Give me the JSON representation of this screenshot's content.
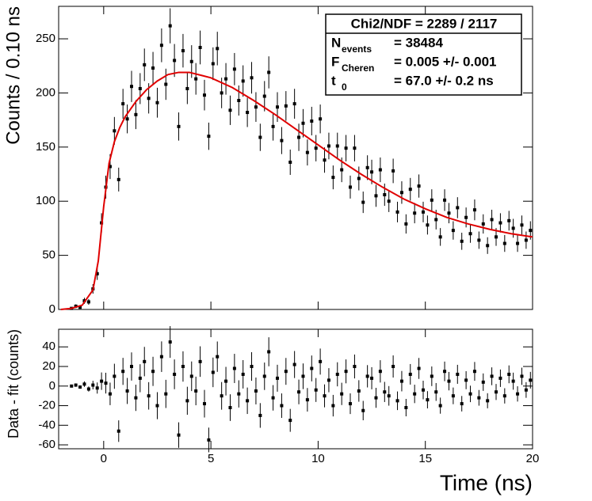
{
  "chart_data": [
    {
      "type": "scatter",
      "ylabel": "Counts / 0.10 ns",
      "xlim": [
        -2.1,
        20
      ],
      "xticks": [
        0,
        5,
        10,
        15,
        20
      ],
      "ylim": [
        0,
        280
      ],
      "yticks": [
        0,
        50,
        100,
        150,
        200,
        250
      ],
      "series": [
        {
          "color": "#000000",
          "line": false,
          "x": [
            -1.5,
            -1.3,
            -1.1,
            -0.9,
            -0.7,
            -0.5,
            -0.3,
            -0.1,
            0.1,
            0.3,
            0.5,
            0.7,
            0.9,
            1.1,
            1.3,
            1.5,
            1.7,
            1.9,
            2.1,
            2.3,
            2.5,
            2.7,
            2.9,
            3.1,
            3.3,
            3.5,
            3.7,
            3.9,
            4.1,
            4.3,
            4.5,
            4.7,
            4.9,
            5.1,
            5.3,
            5.5,
            5.7,
            5.9,
            6.1,
            6.3,
            6.5,
            6.7,
            6.9,
            7.1,
            7.3,
            7.5,
            7.7,
            7.9,
            8.1,
            8.3,
            8.5,
            8.7,
            8.9,
            9.1,
            9.3,
            9.5,
            9.7,
            9.9,
            10.1,
            10.3,
            10.5,
            10.7,
            10.9,
            11.1,
            11.3,
            11.5,
            11.7,
            11.9,
            12.1,
            12.3,
            12.5,
            12.7,
            12.9,
            13.1,
            13.3,
            13.5,
            13.7,
            13.9,
            14.1,
            14.3,
            14.5,
            14.7,
            14.9,
            15.1,
            15.3,
            15.5,
            15.7,
            15.9,
            16.1,
            16.3,
            16.5,
            16.7,
            16.9,
            17.1,
            17.3,
            17.5,
            17.7,
            17.9,
            18.1,
            18.3,
            18.5,
            18.7,
            18.9,
            19.1,
            19.3,
            19.5,
            19.7,
            19.9
          ],
          "values": [
            1,
            3,
            2,
            8,
            7,
            19,
            33,
            80,
            113,
            132,
            165,
            120,
            190,
            176,
            206,
            180,
            204,
            226,
            195,
            223,
            191,
            244,
            208,
            262,
            230,
            169,
            239,
            204,
            229,
            213,
            242,
            198,
            160,
            227,
            241,
            200,
            213,
            184,
            222,
            193,
            211,
            182,
            214,
            187,
            159,
            197,
            219,
            169,
            187,
            156,
            188,
            136,
            190,
            159,
            172,
            145,
            174,
            149,
            176,
            138,
            151,
            122,
            151,
            129,
            149,
            113,
            149,
            121,
            99,
            131,
            127,
            105,
            129,
            106,
            100,
            128,
            90,
            108,
            79,
            111,
            89,
            114,
            90,
            78,
            101,
            83,
            67,
            101,
            89,
            73,
            94,
            63,
            85,
            70,
            92,
            64,
            79,
            59,
            83,
            67,
            80,
            61,
            82,
            75,
            61,
            78,
            64,
            73
          ],
          "errors": [
            1,
            1.7,
            1.4,
            2.8,
            2.6,
            4.4,
            5.7,
            8.9,
            10.6,
            11.5,
            12.8,
            11,
            13.8,
            13.3,
            14.4,
            13.4,
            14.3,
            15,
            14,
            14.9,
            13.8,
            15.6,
            14.4,
            16.2,
            15.2,
            13,
            15.5,
            14.3,
            15.1,
            14.6,
            15.6,
            14.1,
            12.6,
            15.1,
            15.5,
            14.1,
            14.6,
            13.6,
            14.9,
            13.9,
            14.5,
            13.5,
            14.6,
            13.7,
            12.6,
            14,
            14.8,
            13,
            13.7,
            12.5,
            13.7,
            11.7,
            13.8,
            12.6,
            13.1,
            12,
            13.2,
            12.2,
            13.3,
            11.7,
            12.3,
            11,
            12.3,
            11.4,
            12.2,
            10.6,
            12.2,
            11,
            9.9,
            11.4,
            11.3,
            10.2,
            11.4,
            10.3,
            10,
            11.3,
            9.5,
            10.4,
            8.9,
            10.5,
            9.4,
            10.7,
            9.5,
            8.8,
            10,
            9.1,
            8.2,
            10,
            9.4,
            8.5,
            9.7,
            7.9,
            9.2,
            8.4,
            9.6,
            8,
            8.9,
            7.7,
            9.1,
            8.2,
            8.9,
            7.8,
            9.1,
            8.7,
            7.8,
            8.8,
            8,
            8.5
          ]
        },
        {
          "color": "#e00000",
          "line": true,
          "x": [
            -2,
            -1.5,
            -1,
            -0.5,
            -0.25,
            0,
            0.25,
            0.5,
            0.75,
            1,
            1.5,
            2,
            2.5,
            3,
            3.5,
            4,
            5,
            6,
            7,
            8,
            9,
            10,
            11,
            12,
            13,
            14,
            15,
            16,
            17,
            18,
            19,
            20
          ],
          "values": [
            0,
            1,
            4,
            18,
            45,
            95,
            135,
            155,
            168,
            178,
            192,
            203,
            211,
            217,
            219,
            219,
            214,
            205,
            193,
            180,
            166,
            152,
            138,
            125,
            113,
            102,
            93,
            85,
            79,
            74,
            70,
            67
          ]
        }
      ],
      "stats": {
        "title": "Chi2/NDF = 2289 / 2117",
        "rows": [
          {
            "label": "N",
            "sub": "events",
            "value": "= 38484"
          },
          {
            "label": "F",
            "sub": "Cheren",
            "value": "= 0.005 +/- 0.001"
          },
          {
            "label": "t",
            "sub": "0",
            "value": "= 67.0 +/- 0.2 ns"
          }
        ]
      }
    },
    {
      "type": "scatter",
      "ylabel": "Data - fit (counts)",
      "xlabel": "Time (ns)",
      "xlim": [
        -2.1,
        20
      ],
      "xticks": [
        0,
        5,
        10,
        15,
        20
      ],
      "ylim": [
        -64,
        58
      ],
      "yticks": [
        -60,
        -40,
        -20,
        0,
        20,
        40
      ],
      "series": [
        {
          "color": "#000000",
          "line": false,
          "x": [
            -1.5,
            -1.3,
            -1.1,
            -0.9,
            -0.7,
            -0.5,
            -0.3,
            -0.1,
            0.1,
            0.3,
            0.5,
            0.7,
            0.9,
            1.1,
            1.3,
            1.5,
            1.7,
            1.9,
            2.1,
            2.3,
            2.5,
            2.7,
            2.9,
            3.1,
            3.3,
            3.5,
            3.7,
            3.9,
            4.1,
            4.3,
            4.5,
            4.7,
            4.9,
            5.1,
            5.3,
            5.5,
            5.7,
            5.9,
            6.1,
            6.3,
            6.5,
            6.7,
            6.9,
            7.1,
            7.3,
            7.5,
            7.7,
            7.9,
            8.1,
            8.3,
            8.5,
            8.7,
            8.9,
            9.1,
            9.3,
            9.5,
            9.7,
            9.9,
            10.1,
            10.3,
            10.5,
            10.7,
            10.9,
            11.1,
            11.3,
            11.5,
            11.7,
            11.9,
            12.1,
            12.3,
            12.5,
            12.7,
            12.9,
            13.1,
            13.3,
            13.5,
            13.7,
            13.9,
            14.1,
            14.3,
            14.5,
            14.7,
            14.9,
            15.1,
            15.3,
            15.5,
            15.7,
            15.9,
            16.1,
            16.3,
            16.5,
            16.7,
            16.9,
            17.1,
            17.3,
            17.5,
            17.7,
            17.9,
            18.1,
            18.3,
            18.5,
            18.7,
            18.9,
            19.1,
            19.3,
            19.5,
            19.7,
            19.9
          ],
          "values": [
            0,
            1,
            -1,
            2,
            -3,
            1,
            -2,
            5,
            3,
            -8,
            10,
            -46,
            15,
            -5,
            20,
            -12,
            8,
            25,
            -10,
            15,
            -20,
            30,
            -8,
            45,
            12,
            -50,
            20,
            -15,
            10,
            -5,
            25,
            -18,
            -55,
            14,
            30,
            -10,
            5,
            -22,
            18,
            -8,
            12,
            -15,
            20,
            -5,
            -30,
            10,
            35,
            -12,
            8,
            -20,
            15,
            -35,
            22,
            -6,
            10,
            -14,
            18,
            -4,
            25,
            -10,
            6,
            -20,
            12,
            -8,
            15,
            -18,
            20,
            -5,
            -25,
            10,
            8,
            -12,
            15,
            -6,
            -10,
            20,
            -15,
            5,
            -22,
            12,
            -8,
            18,
            -4,
            -14,
            10,
            -6,
            -20,
            15,
            5,
            -10,
            12,
            -18,
            6,
            -8,
            15,
            -12,
            4,
            -15,
            10,
            -6,
            8,
            -10,
            12,
            5,
            -8,
            10,
            -4,
            6
          ],
          "errors": [
            1,
            1.7,
            1.4,
            2.8,
            2.6,
            4.4,
            5.7,
            8.9,
            10.6,
            11.5,
            12.8,
            11,
            13.8,
            13.3,
            14.4,
            13.4,
            14.3,
            15,
            14,
            14.9,
            13.8,
            15.6,
            14.4,
            16.2,
            15.2,
            13,
            15.5,
            14.3,
            15.1,
            14.6,
            15.6,
            14.1,
            12.6,
            15.1,
            15.5,
            14.1,
            14.6,
            13.6,
            14.9,
            13.9,
            14.5,
            13.5,
            14.6,
            13.7,
            12.6,
            14,
            14.8,
            13,
            13.7,
            12.5,
            13.7,
            11.7,
            13.8,
            12.6,
            13.1,
            12,
            13.2,
            12.2,
            13.3,
            11.7,
            12.3,
            11,
            12.3,
            11.4,
            12.2,
            10.6,
            12.2,
            11,
            9.9,
            11.4,
            11.3,
            10.2,
            11.4,
            10.3,
            10,
            11.3,
            9.5,
            10.4,
            8.9,
            10.5,
            9.4,
            10.7,
            9.5,
            8.8,
            10,
            9.1,
            8.2,
            10,
            9.4,
            8.5,
            9.7,
            7.9,
            9.2,
            8.4,
            9.6,
            8,
            8.9,
            7.7,
            9.1,
            8.2,
            8.9,
            7.8,
            9.1,
            8.7,
            7.8,
            8.8,
            8,
            8.5
          ]
        }
      ]
    }
  ]
}
